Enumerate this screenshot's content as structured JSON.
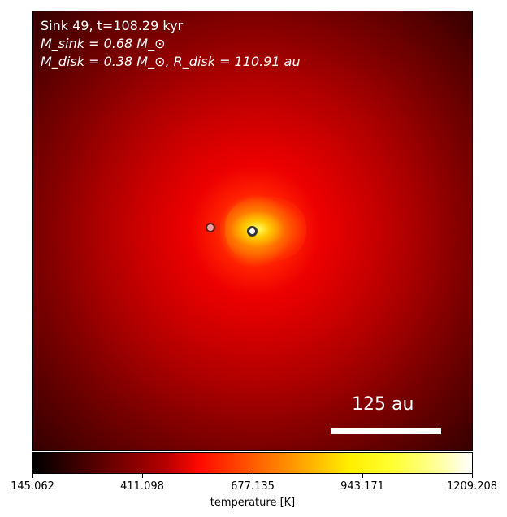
{
  "annotation": {
    "line1": "Sink 49, t=108.29 kyr",
    "line2": "M_sink = 0.68 M_⊙",
    "line3": "M_disk = 0.38 M_⊙, R_disk = 110.91 au"
  },
  "scalebar": {
    "label": "125 au"
  },
  "colorbar": {
    "label": "temperature [K]",
    "ticks": [
      "145.062",
      "411.098",
      "677.135",
      "943.171",
      "1209.208"
    ],
    "colormap": "hot"
  },
  "colors": {
    "sink_primary_edge": "#333333",
    "sink_secondary_fill": "#f4a0a0"
  }
}
